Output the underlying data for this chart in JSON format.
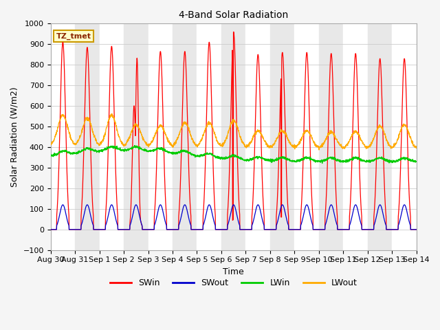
{
  "title": "4-Band Solar Radiation",
  "xlabel": "Time",
  "ylabel": "Solar Radiation (W/m2)",
  "ylim": [
    -100,
    1000
  ],
  "annotation_text": "TZ_tmet",
  "legend_labels": [
    "SWin",
    "SWout",
    "LWin",
    "LWout"
  ],
  "legend_colors": [
    "#ff0000",
    "#0000cc",
    "#00cc00",
    "#ffaa00"
  ],
  "x_tick_labels": [
    "Aug 30",
    "Aug 31",
    "Sep 1",
    "Sep 2",
    "Sep 3",
    "Sep 4",
    "Sep 5",
    "Sep 6",
    "Sep 7",
    "Sep 8",
    "Sep 9",
    "Sep 10",
    "Sep 11",
    "Sep 12",
    "Sep 13",
    "Sep 14"
  ],
  "band_colors": [
    "#ffffff",
    "#e8e8e8"
  ],
  "grid_color": "#cccccc",
  "n_days": 15,
  "pts_per_day": 144
}
